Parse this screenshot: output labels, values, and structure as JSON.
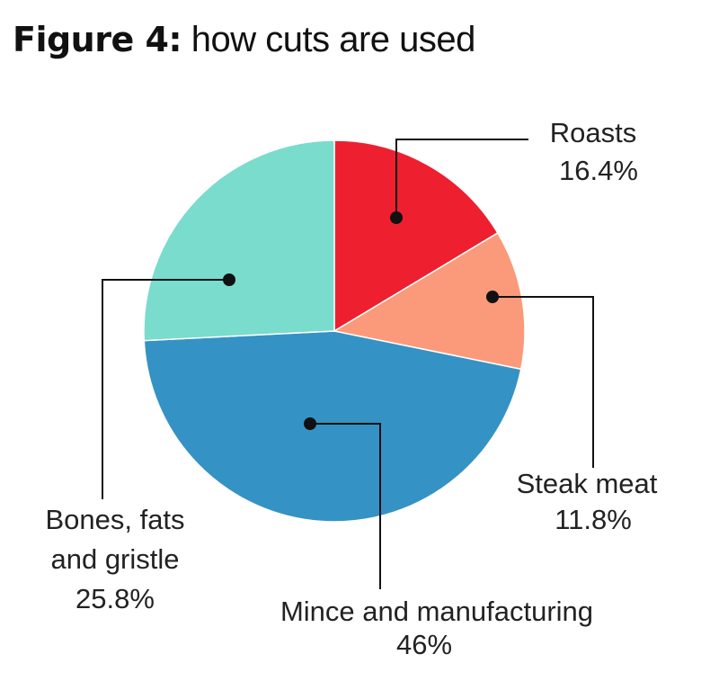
{
  "title": {
    "bold": "Figure 4:",
    "rest": "how cuts are used"
  },
  "chart_data": {
    "type": "pie",
    "start_angle_deg": 0,
    "direction": "clockwise",
    "slices": [
      {
        "name": "Roasts",
        "value": 16.4,
        "value_label": "16.4%",
        "color": "#ee1f2f"
      },
      {
        "name": "Steak meat",
        "value": 11.8,
        "value_label": "11.8%",
        "color": "#fb9a7a"
      },
      {
        "name": "Mince and manufacturing",
        "value": 46,
        "value_label": "46%",
        "color": "#3592c4"
      },
      {
        "name": "Bones, fats and gristle",
        "label_lines": [
          "Bones, fats",
          "and gristle"
        ],
        "value": 25.8,
        "value_label": "25.8%",
        "color": "#79dccd"
      }
    ]
  }
}
